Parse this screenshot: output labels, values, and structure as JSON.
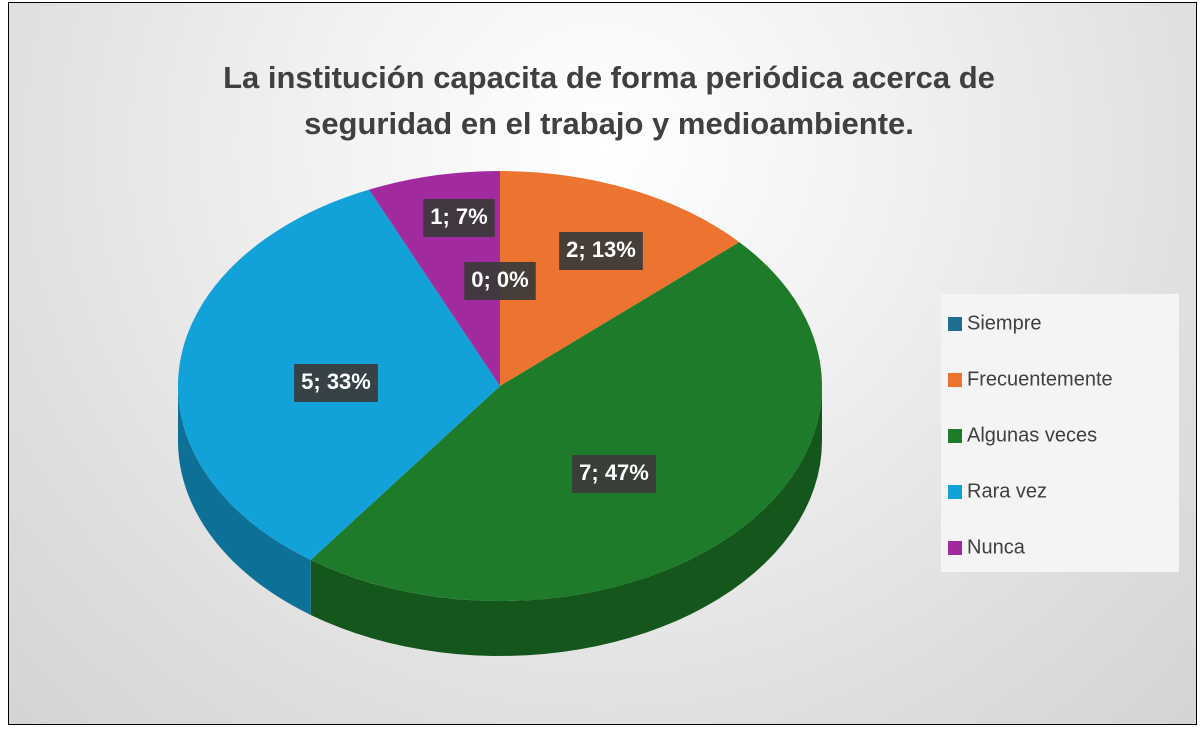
{
  "chart_data": {
    "type": "pie",
    "title": "La institución capacita de forma periódica acerca de seguridad en el trabajo y medioambiente.",
    "categories": [
      "Siempre",
      "Frecuentemente",
      "Algunas veces",
      "Rara vez",
      "Nunca"
    ],
    "values": [
      0,
      2,
      7,
      5,
      1
    ],
    "value_labels": [
      "0; 0%",
      "2; 13%",
      "7; 47%",
      "5; 33%",
      "1; 7%"
    ],
    "colors": [
      "#1f6d8f",
      "#ec7330",
      "#1e7b2a",
      "#12a1d8",
      "#a12a9f"
    ],
    "legend": "right"
  }
}
